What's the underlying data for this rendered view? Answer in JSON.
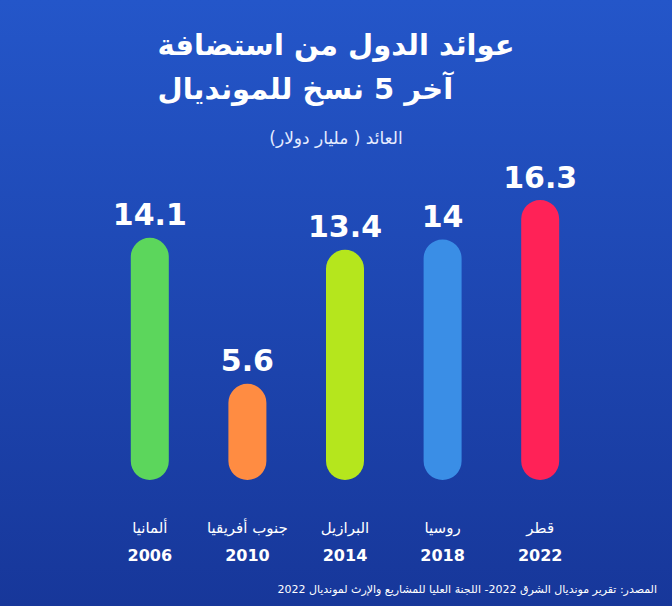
{
  "chart_data": {
    "type": "bar",
    "title": "عوائد الدول من استضافة\nآخر 5 نسخ للمونديال",
    "subtitle": "العائد ( مليار دولار)",
    "source": "المصدر: تقرير مونديال الشرق 2022- اللجنة العليا للمشاريع والإرث لمونديال 2022",
    "categories": [
      "ألمانيا\n2006",
      "جنوب أفريقيا\n2010",
      "البرازيل\n2014",
      "روسيا\n2018",
      "قطر\n2022"
    ],
    "values": [
      14.1,
      5.6,
      13.4,
      14,
      16.3
    ],
    "colors": [
      "#5cd65c",
      "#ff8c42",
      "#b5e61d",
      "#3a8ee6",
      "#ff2257"
    ],
    "ylim": [
      0,
      17
    ],
    "grid": false,
    "tick_labels": "x",
    "data_labels": true
  }
}
